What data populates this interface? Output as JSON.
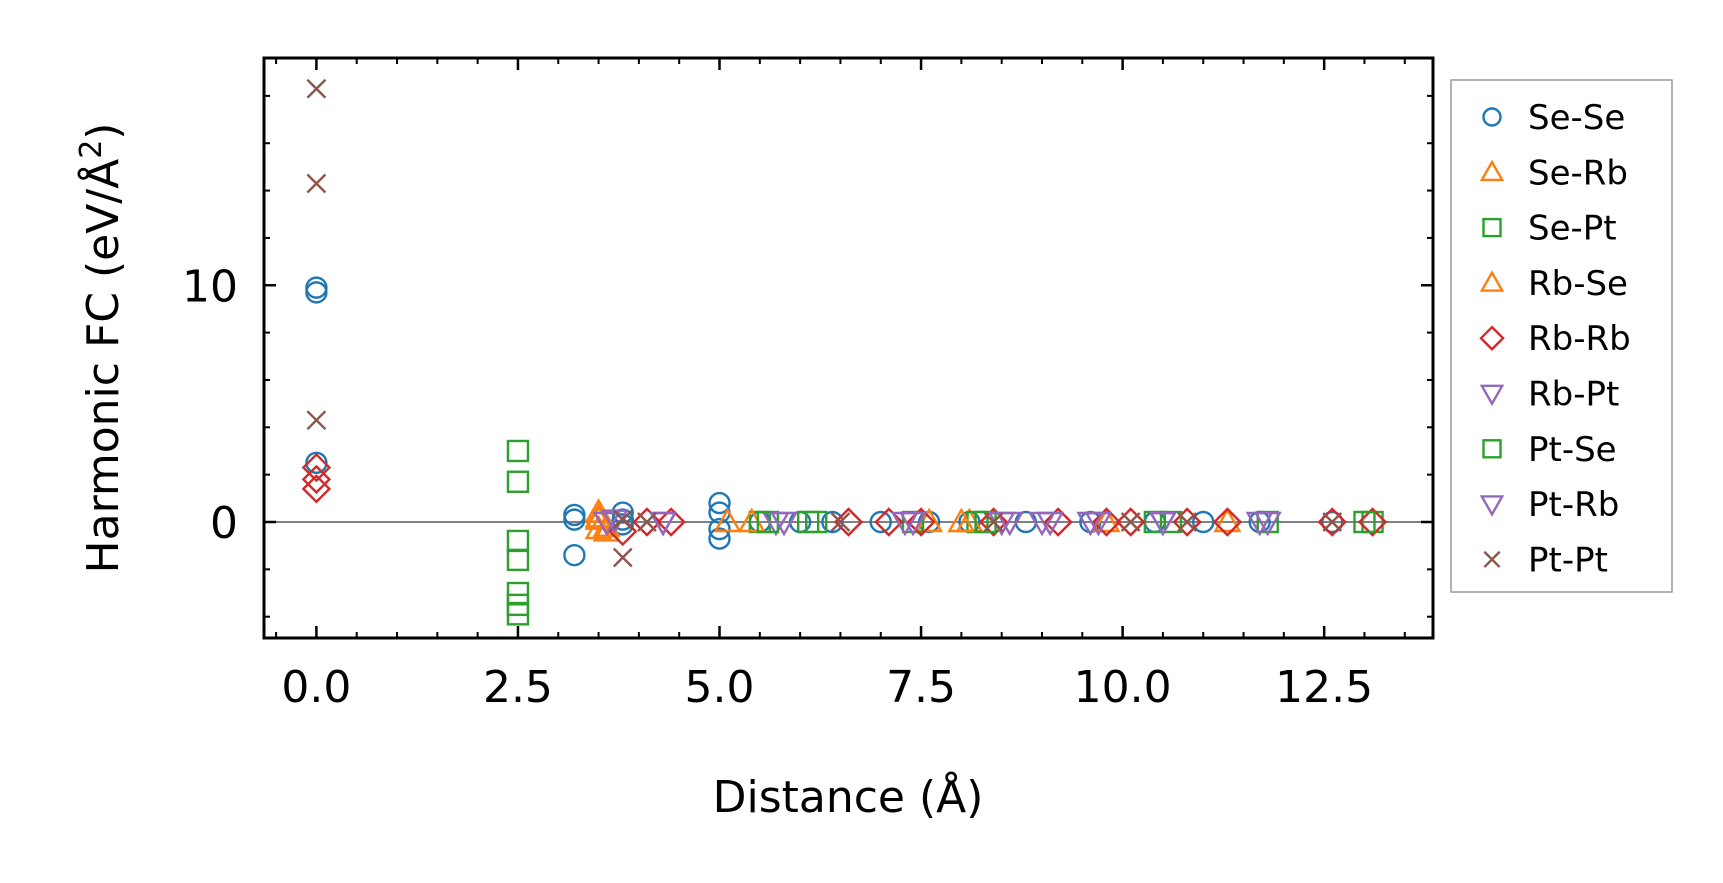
{
  "chart_data": {
    "type": "scatter",
    "xlabel": "Distance (Å)",
    "ylabel_main": "Harmonic FC (eV/Å",
    "ylabel_sup": "2",
    "ylabel_close": ")",
    "xlim": [
      -0.65,
      13.85
    ],
    "ylim": [
      -4.9,
      19.6
    ],
    "xticks": [
      0.0,
      2.5,
      5.0,
      7.5,
      10.0,
      12.5
    ],
    "xtick_labels": [
      "0.0",
      "2.5",
      "5.0",
      "7.5",
      "10.0",
      "12.5"
    ],
    "yticks": [
      0,
      10
    ],
    "ytick_labels": [
      "0",
      "10"
    ],
    "zero_line": true,
    "grid": false,
    "legend_position": "right",
    "series": [
      {
        "name": "Se-Se",
        "marker": "circle",
        "color": "#1f77b4",
        "points": [
          [
            0,
            9.9
          ],
          [
            0,
            9.7
          ],
          [
            0,
            2.5
          ],
          [
            3.2,
            0.3
          ],
          [
            3.2,
            0.1
          ],
          [
            3.2,
            -1.4
          ],
          [
            3.8,
            0.4
          ],
          [
            3.8,
            0.1
          ],
          [
            3.8,
            -0.1
          ],
          [
            5.0,
            0.8
          ],
          [
            5.0,
            0.4
          ],
          [
            5.0,
            -0.3
          ],
          [
            5.0,
            -0.7
          ],
          [
            5.5,
            0
          ],
          [
            6.0,
            0
          ],
          [
            6.4,
            0
          ],
          [
            7.0,
            0
          ],
          [
            7.6,
            0
          ],
          [
            8.1,
            0
          ],
          [
            8.8,
            0
          ],
          [
            9.6,
            0
          ],
          [
            10.4,
            0
          ],
          [
            11.0,
            0
          ],
          [
            11.7,
            0
          ],
          [
            12.6,
            0
          ]
        ]
      },
      {
        "name": "Se-Rb",
        "marker": "triangle-up",
        "color": "#ff7f0e",
        "points": [
          [
            3.5,
            0.4
          ],
          [
            3.5,
            0.1
          ],
          [
            3.5,
            -0.3
          ],
          [
            3.6,
            -0.4
          ],
          [
            5.1,
            0
          ],
          [
            7.6,
            0
          ],
          [
            8.1,
            0
          ],
          [
            11.3,
            0
          ]
        ]
      },
      {
        "name": "Se-Pt",
        "marker": "square",
        "color": "#2ca02c",
        "points": [
          [
            2.5,
            3.0
          ],
          [
            2.5,
            1.7
          ],
          [
            2.5,
            -0.8
          ],
          [
            2.5,
            -1.6
          ],
          [
            2.5,
            -3.0
          ],
          [
            2.5,
            -3.5
          ],
          [
            2.5,
            -3.9
          ],
          [
            5.5,
            0
          ],
          [
            6.2,
            0
          ],
          [
            7.4,
            0
          ],
          [
            8.2,
            0
          ],
          [
            10.4,
            0
          ],
          [
            11.8,
            0
          ],
          [
            13.1,
            0
          ]
        ]
      },
      {
        "name": "Rb-Se",
        "marker": "triangle-up",
        "color": "#ff7f0e",
        "points": [
          [
            3.5,
            0.2
          ],
          [
            3.6,
            -0.2
          ],
          [
            5.4,
            0
          ],
          [
            8.0,
            0
          ],
          [
            9.8,
            0
          ]
        ]
      },
      {
        "name": "Rb-Rb",
        "marker": "diamond",
        "color": "#d62728",
        "points": [
          [
            0,
            2.3
          ],
          [
            0,
            1.8
          ],
          [
            0,
            1.4
          ],
          [
            3.8,
            -0.4
          ],
          [
            4.1,
            0
          ],
          [
            4.4,
            0
          ],
          [
            6.6,
            0
          ],
          [
            7.1,
            0
          ],
          [
            7.5,
            0
          ],
          [
            8.4,
            0
          ],
          [
            9.2,
            0
          ],
          [
            9.8,
            0
          ],
          [
            10.1,
            0
          ],
          [
            10.8,
            0
          ],
          [
            11.3,
            0
          ],
          [
            12.6,
            0
          ],
          [
            13.1,
            0
          ]
        ]
      },
      {
        "name": "Rb-Pt",
        "marker": "triangle-down",
        "color": "#9467bd",
        "points": [
          [
            3.7,
            0.1
          ],
          [
            4.3,
            0
          ],
          [
            5.7,
            0
          ],
          [
            7.3,
            0
          ],
          [
            8.6,
            0
          ],
          [
            9.0,
            0
          ],
          [
            9.7,
            0
          ],
          [
            10.5,
            0
          ],
          [
            11.7,
            0
          ]
        ]
      },
      {
        "name": "Pt-Se",
        "marker": "square",
        "color": "#2ca02c",
        "points": [
          [
            5.6,
            0
          ],
          [
            6.1,
            0
          ],
          [
            8.3,
            0
          ],
          [
            10.6,
            0
          ],
          [
            13.0,
            0
          ]
        ]
      },
      {
        "name": "Pt-Rb",
        "marker": "triangle-down",
        "color": "#9467bd",
        "points": [
          [
            3.6,
            0
          ],
          [
            4.3,
            0
          ],
          [
            5.8,
            0
          ],
          [
            7.4,
            0
          ],
          [
            8.5,
            0
          ],
          [
            9.1,
            0
          ],
          [
            9.6,
            0
          ],
          [
            10.5,
            0
          ],
          [
            11.8,
            0
          ]
        ]
      },
      {
        "name": "Pt-Pt",
        "marker": "x",
        "color": "#8c564b",
        "points": [
          [
            0,
            18.3
          ],
          [
            0,
            14.3
          ],
          [
            0,
            4.3
          ],
          [
            3.8,
            -1.5
          ],
          [
            3.8,
            0.1
          ],
          [
            4.1,
            0
          ],
          [
            6.5,
            0
          ],
          [
            8.4,
            0
          ],
          [
            10.1,
            0
          ],
          [
            10.8,
            0
          ],
          [
            12.6,
            0
          ]
        ]
      }
    ]
  }
}
